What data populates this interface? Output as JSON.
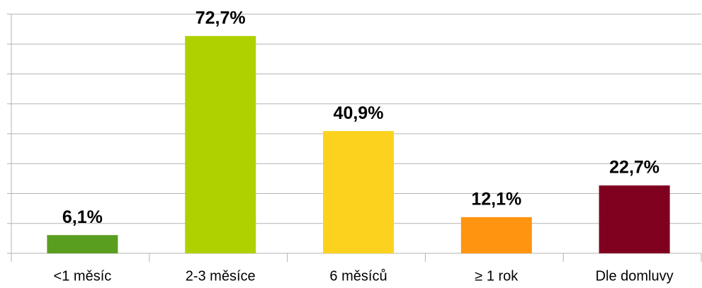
{
  "chart_data": {
    "type": "bar",
    "categories": [
      "<1 měsíc",
      "2-3 měsíce",
      "6 měsíců",
      "≥ 1 rok",
      "Dle domluvy"
    ],
    "values": [
      6.1,
      72.7,
      40.9,
      12.1,
      22.7
    ],
    "value_labels": [
      "6,1%",
      "72,7%",
      "40,9%",
      "12,1%",
      "22,7%"
    ],
    "colors": [
      "#5a9e1f",
      "#b0d100",
      "#fdd21f",
      "#ff9410",
      "#800020"
    ],
    "ylim": [
      0,
      80
    ],
    "yticks": [
      0,
      10,
      20,
      30,
      40,
      50,
      60,
      70,
      80
    ],
    "grid": true
  }
}
